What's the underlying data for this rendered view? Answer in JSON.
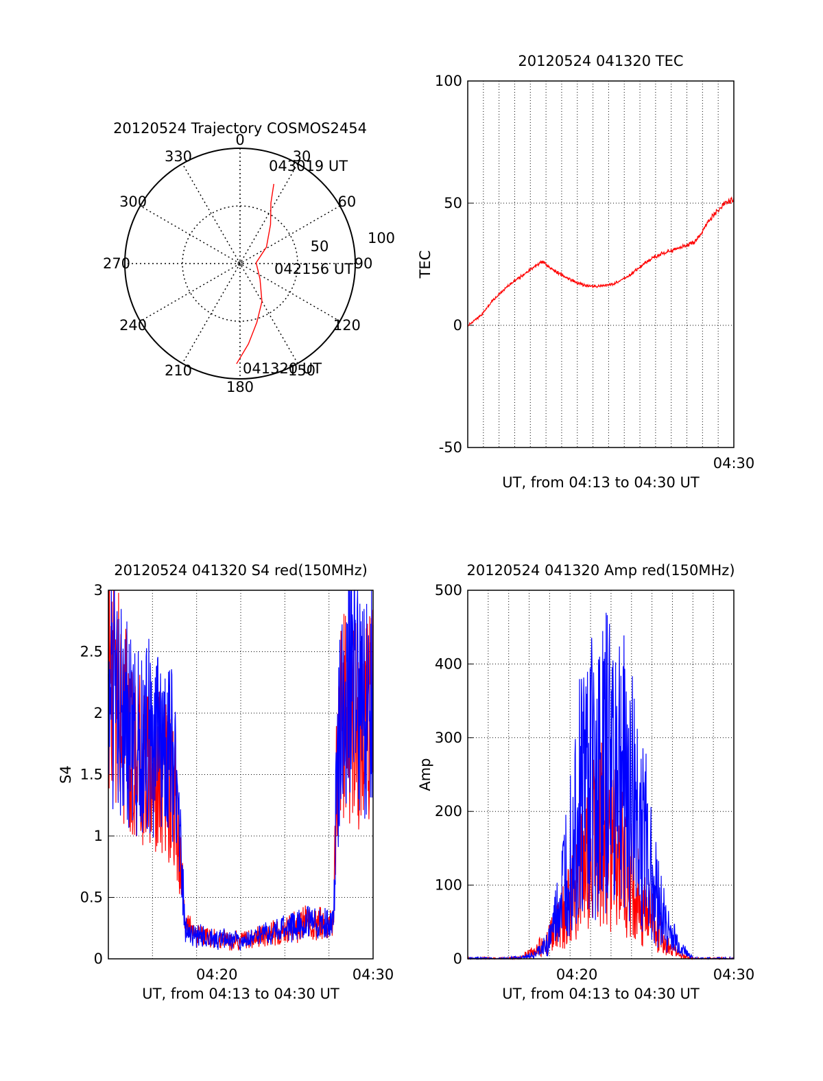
{
  "chart_data": [
    {
      "type": "polar",
      "title": "20120524 Trajectory COSMOS2454",
      "azimuth_labels": [
        "0",
        "30",
        "60",
        "90",
        "120",
        "150",
        "180",
        "210",
        "240",
        "270",
        "300",
        "330"
      ],
      "radial_labels": [
        "50",
        "100"
      ],
      "radial_range": [
        0,
        100
      ],
      "grid": true,
      "series": [
        {
          "name": "trajectory",
          "color": "#ff0000",
          "points": [
            {
              "time": "041320 UT",
              "az": 182,
              "el": 13
            },
            {
              "az": 174,
              "el": 30
            },
            {
              "az": 164,
              "el": 47
            },
            {
              "az": 150,
              "el": 62
            },
            {
              "az": 128,
              "el": 78
            },
            {
              "time": "042156 UT",
              "az": 87,
              "el": 86
            },
            {
              "az": 58,
              "el": 73
            },
            {
              "az": 38,
              "el": 57
            },
            {
              "az": 27,
              "el": 41
            },
            {
              "time": "043019 UT",
              "az": 23,
              "el": 25
            }
          ]
        }
      ],
      "annotations": [
        "043019 UT",
        "042156 UT",
        "041320 UT"
      ]
    },
    {
      "type": "line",
      "title": "20120524 041320 TEC",
      "xlabel": "UT, from 04:13 to 04:30 UT",
      "ylabel": "TEC",
      "xlim": [
        0,
        1
      ],
      "ylim": [
        -50,
        100
      ],
      "yticks": [
        "100",
        "50",
        "0",
        "-50"
      ],
      "xtick_labels": [
        {
          "x": 1.0,
          "label": "04:30"
        }
      ],
      "grid": true,
      "series": [
        {
          "name": "TEC",
          "color": "#ff0000",
          "x": [
            0,
            0.05,
            0.1,
            0.15,
            0.2,
            0.25,
            0.28,
            0.33,
            0.4,
            0.45,
            0.5,
            0.55,
            0.6,
            0.65,
            0.7,
            0.75,
            0.8,
            0.85,
            0.88,
            0.9,
            0.93,
            0.96,
            1.0
          ],
          "y": [
            0,
            4,
            11,
            16,
            20,
            24,
            26,
            22,
            18,
            16,
            16,
            17,
            20,
            24,
            28,
            30,
            32,
            34,
            38,
            42,
            46,
            49,
            52
          ]
        }
      ]
    },
    {
      "type": "line",
      "title": "20120524 041320 S4 red(150MHz)",
      "xlabel": "UT, from 04:13 to 04:30 UT",
      "ylabel": "S4",
      "xlim": [
        0,
        1
      ],
      "ylim": [
        0,
        3
      ],
      "yticks": [
        "3",
        "2.5",
        "2",
        "1.5",
        "1",
        "0.5",
        "0"
      ],
      "xtick_labels": [
        {
          "x": 0.41,
          "label": "04:20"
        },
        {
          "x": 1.0,
          "label": "04:30"
        }
      ],
      "grid": true,
      "series": [
        {
          "name": "red",
          "color": "#ff0000",
          "x": [
            0,
            0.05,
            0.1,
            0.15,
            0.2,
            0.25,
            0.27,
            0.29,
            0.32,
            0.4,
            0.5,
            0.6,
            0.7,
            0.75,
            0.8,
            0.85,
            0.86,
            0.88,
            0.92,
            0.96,
            1.0
          ],
          "y": [
            2.4,
            2.0,
            1.7,
            1.6,
            1.5,
            1.3,
            0.8,
            0.3,
            0.2,
            0.16,
            0.15,
            0.2,
            0.25,
            0.3,
            0.28,
            0.3,
            1.4,
            2.0,
            2.0,
            1.8,
            2.0
          ]
        },
        {
          "name": "blue",
          "color": "#0000ff",
          "x": [
            0,
            0.05,
            0.1,
            0.15,
            0.2,
            0.25,
            0.27,
            0.29,
            0.32,
            0.4,
            0.5,
            0.6,
            0.7,
            0.75,
            0.8,
            0.85,
            0.86,
            0.88,
            0.92,
            0.96,
            1.0
          ],
          "y": [
            2.2,
            2.0,
            1.8,
            1.8,
            1.7,
            1.6,
            1.0,
            0.25,
            0.2,
            0.17,
            0.15,
            0.2,
            0.27,
            0.3,
            0.28,
            0.3,
            1.2,
            2.1,
            2.3,
            2.0,
            2.4
          ]
        }
      ]
    },
    {
      "type": "line",
      "title": "20120524 041320 Amp red(150MHz)",
      "xlabel": "UT, from 04:13 to 04:30 UT",
      "ylabel": "Amp",
      "xlim": [
        0,
        1
      ],
      "ylim": [
        0,
        500
      ],
      "yticks": [
        "500",
        "400",
        "300",
        "200",
        "100",
        "0"
      ],
      "xtick_labels": [
        {
          "x": 0.41,
          "label": "04:20"
        },
        {
          "x": 1.0,
          "label": "04:30"
        }
      ],
      "grid": true,
      "series": [
        {
          "name": "red",
          "color": "#ff0000",
          "x": [
            0,
            0.15,
            0.2,
            0.25,
            0.3,
            0.35,
            0.4,
            0.45,
            0.5,
            0.55,
            0.6,
            0.65,
            0.7,
            0.75,
            0.8,
            0.85,
            1.0
          ],
          "y": [
            0,
            0,
            2,
            10,
            25,
            50,
            90,
            140,
            170,
            150,
            110,
            80,
            50,
            20,
            5,
            0,
            0
          ]
        },
        {
          "name": "blue",
          "color": "#0000ff",
          "x": [
            0,
            0.15,
            0.2,
            0.25,
            0.3,
            0.35,
            0.4,
            0.45,
            0.5,
            0.55,
            0.6,
            0.65,
            0.7,
            0.75,
            0.8,
            0.85,
            1.0
          ],
          "y": [
            0,
            0,
            2,
            5,
            20,
            80,
            200,
            260,
            250,
            280,
            240,
            190,
            100,
            40,
            15,
            0,
            0
          ]
        }
      ]
    }
  ]
}
